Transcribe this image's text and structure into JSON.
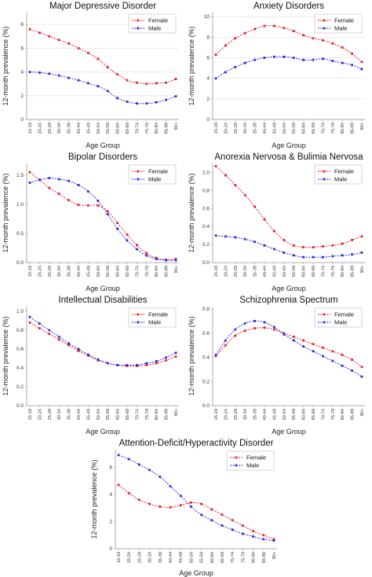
{
  "page": {
    "background": "#ffffff"
  },
  "colors": {
    "female": "#e8202a",
    "male": "#2a2ae0",
    "grid": "#dddddd",
    "axis": "#999999"
  },
  "legend": {
    "female": "Female",
    "male": "Male"
  },
  "chart_data": [
    {
      "type": "line",
      "title": "Major Depressive Disorder",
      "xlabel": "Age Group",
      "ylabel": "12-month prevalence (%)",
      "categories": [
        "15-19",
        "20-24",
        "25-29",
        "30-34",
        "35-39",
        "40-44",
        "45-49",
        "50-54",
        "55-59",
        "60-64",
        "65-69",
        "70-74",
        "75-79",
        "80-84",
        "85-89",
        "90+"
      ],
      "yticks": [
        "0",
        "2",
        "4",
        "6",
        "8"
      ],
      "ylim": [
        0,
        9
      ],
      "grid": "horizontal",
      "legend_position": "top-right",
      "series": [
        {
          "name": "Female",
          "values": [
            7.6,
            7.3,
            7.0,
            6.7,
            6.4,
            6.0,
            5.6,
            5.1,
            4.4,
            3.8,
            3.3,
            3.1,
            3.0,
            3.05,
            3.1,
            3.4
          ]
        },
        {
          "name": "Male",
          "values": [
            4.0,
            3.95,
            3.85,
            3.7,
            3.5,
            3.3,
            3.05,
            2.8,
            2.4,
            1.8,
            1.5,
            1.35,
            1.35,
            1.45,
            1.65,
            1.95
          ]
        }
      ]
    },
    {
      "type": "line",
      "title": "Anxiety Disorders",
      "xlabel": "Age Group",
      "ylabel": "12-month prevalence (%)",
      "categories": [
        "15-19",
        "20-24",
        "25-29",
        "30-34",
        "35-39",
        "40-44",
        "45-49",
        "50-54",
        "55-59",
        "60-64",
        "65-69",
        "70-74",
        "75-79",
        "80-84",
        "85-89",
        "90+"
      ],
      "yticks": [
        "0",
        "2",
        "4",
        "6",
        "8",
        "10"
      ],
      "ylim": [
        0,
        10.4
      ],
      "grid": "horizontal",
      "legend_position": "top-right",
      "series": [
        {
          "name": "Female",
          "values": [
            6.3,
            7.2,
            7.9,
            8.4,
            8.8,
            9.1,
            9.1,
            8.9,
            8.6,
            8.2,
            7.9,
            7.7,
            7.4,
            7.0,
            6.4,
            5.6
          ]
        },
        {
          "name": "Male",
          "values": [
            4.0,
            4.6,
            5.1,
            5.5,
            5.8,
            6.0,
            6.1,
            6.1,
            6.0,
            5.8,
            5.8,
            5.9,
            5.7,
            5.5,
            5.3,
            4.9
          ]
        }
      ]
    },
    {
      "type": "line",
      "title": "Bipolar Disorders",
      "xlabel": "Age Group",
      "ylabel": "12-month prevalence (%)",
      "categories": [
        "15-19",
        "20-24",
        "25-29",
        "30-34",
        "35-39",
        "40-44",
        "45-49",
        "50-54",
        "55-59",
        "60-64",
        "65-69",
        "70-74",
        "75-79",
        "80-84",
        "85-89",
        "90+"
      ],
      "yticks": [
        "0.0",
        "0.5",
        "1.0",
        "1.5"
      ],
      "ylim": [
        0,
        1.7
      ],
      "grid": "none",
      "legend_position": "top-right",
      "series": [
        {
          "name": "Female",
          "values": [
            1.55,
            1.42,
            1.28,
            1.18,
            1.07,
            0.99,
            0.98,
            0.98,
            0.88,
            0.68,
            0.48,
            0.3,
            0.16,
            0.08,
            0.05,
            0.06
          ]
        },
        {
          "name": "Male",
          "values": [
            1.37,
            1.42,
            1.45,
            1.43,
            1.4,
            1.33,
            1.22,
            1.06,
            0.83,
            0.58,
            0.38,
            0.23,
            0.12,
            0.06,
            0.04,
            0.04
          ]
        }
      ]
    },
    {
      "type": "line",
      "title": "Anorexia Nervosa & Bulimia Nervosa",
      "xlabel": "Age Group",
      "ylabel": "12-month prevalence (%)",
      "categories": [
        "15-19",
        "20-24",
        "25-29",
        "30-34",
        "35-39",
        "40-44",
        "45-49",
        "50-54",
        "55-59",
        "60-64",
        "65-69",
        "70-74",
        "75-79",
        "80-84",
        "85-89",
        "90+"
      ],
      "yticks": [
        "0.0",
        "0.2",
        "0.4",
        "0.6",
        "0.8",
        "1.0"
      ],
      "ylim": [
        0,
        1.1
      ],
      "grid": "none",
      "legend_position": "top-right",
      "series": [
        {
          "name": "Female",
          "values": [
            1.07,
            0.97,
            0.86,
            0.75,
            0.62,
            0.48,
            0.35,
            0.25,
            0.19,
            0.17,
            0.17,
            0.18,
            0.19,
            0.21,
            0.25,
            0.29
          ]
        },
        {
          "name": "Male",
          "values": [
            0.3,
            0.29,
            0.28,
            0.26,
            0.23,
            0.19,
            0.15,
            0.11,
            0.08,
            0.06,
            0.06,
            0.06,
            0.07,
            0.08,
            0.09,
            0.11
          ]
        }
      ]
    },
    {
      "type": "line",
      "title": "Intellectual Disabilities",
      "xlabel": "Age Group",
      "ylabel": "12-month prevalence (%)",
      "categories": [
        "15-19",
        "20-24",
        "25-29",
        "30-34",
        "35-39",
        "40-44",
        "45-49",
        "50-54",
        "55-59",
        "60-64",
        "65-69",
        "70-74",
        "75-79",
        "80-84",
        "85-89",
        "90+"
      ],
      "yticks": [
        "0.0",
        "0.2",
        "0.4",
        "0.6",
        "0.8",
        "1.0"
      ],
      "ylim": [
        0,
        1.05
      ],
      "grid": "none",
      "legend_position": "top-right",
      "series": [
        {
          "name": "Female",
          "values": [
            0.88,
            0.82,
            0.76,
            0.7,
            0.64,
            0.58,
            0.53,
            0.48,
            0.45,
            0.43,
            0.42,
            0.42,
            0.43,
            0.45,
            0.48,
            0.52
          ]
        },
        {
          "name": "Male",
          "values": [
            0.94,
            0.87,
            0.8,
            0.73,
            0.66,
            0.6,
            0.54,
            0.49,
            0.45,
            0.43,
            0.43,
            0.43,
            0.45,
            0.47,
            0.51,
            0.56
          ]
        }
      ]
    },
    {
      "type": "line",
      "title": "Schizophrenia Spectrum",
      "xlabel": "Age Group",
      "ylabel": "12-month prevalence (%)",
      "categories": [
        "15-19",
        "20-24",
        "25-29",
        "30-34",
        "35-39",
        "40-44",
        "45-49",
        "50-54",
        "55-59",
        "60-64",
        "65-69",
        "70-74",
        "75-79",
        "80-84",
        "85-89",
        "90+"
      ],
      "yticks": [
        "0.0",
        "0.2",
        "0.4",
        "0.6",
        "0.8"
      ],
      "ylim": [
        0,
        0.82
      ],
      "grid": "none",
      "legend_position": "top-right",
      "series": [
        {
          "name": "Female",
          "values": [
            0.41,
            0.5,
            0.58,
            0.62,
            0.64,
            0.645,
            0.63,
            0.6,
            0.57,
            0.54,
            0.51,
            0.48,
            0.45,
            0.42,
            0.38,
            0.32
          ]
        },
        {
          "name": "Male",
          "values": [
            0.42,
            0.54,
            0.63,
            0.68,
            0.7,
            0.69,
            0.65,
            0.59,
            0.54,
            0.49,
            0.45,
            0.41,
            0.37,
            0.33,
            0.29,
            0.24
          ]
        }
      ]
    },
    {
      "type": "line",
      "title": "Attention-Deficit/Hyperactivity Disorder",
      "xlabel": "Age Group",
      "ylabel": "12-month prevalence (%)",
      "categories": [
        "15-19",
        "20-24",
        "25-29",
        "30-34",
        "35-39",
        "40-44",
        "45-49",
        "50-54",
        "55-59",
        "60-64",
        "65-69",
        "70-74",
        "75-79",
        "80-84",
        "85-89",
        "90+"
      ],
      "yticks": [
        "0",
        "2",
        "4",
        "6"
      ],
      "ylim": [
        0,
        7.3
      ],
      "grid": "none",
      "legend_position": "top-right",
      "series": [
        {
          "name": "Female",
          "values": [
            4.7,
            4.1,
            3.6,
            3.3,
            3.1,
            3.05,
            3.2,
            3.4,
            3.3,
            2.9,
            2.5,
            2.1,
            1.7,
            1.3,
            1.0,
            0.7
          ]
        },
        {
          "name": "Male",
          "values": [
            6.9,
            6.6,
            6.2,
            5.8,
            5.3,
            4.6,
            3.9,
            3.1,
            2.5,
            2.1,
            1.7,
            1.4,
            1.1,
            0.9,
            0.7,
            0.6
          ]
        }
      ]
    }
  ]
}
